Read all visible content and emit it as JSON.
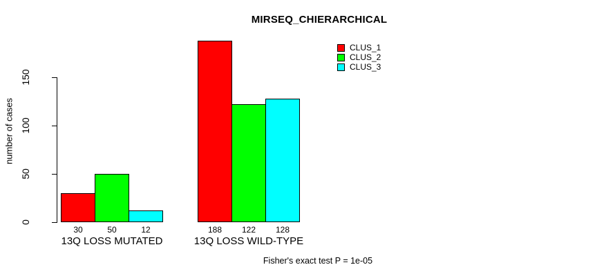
{
  "chart_data": {
    "type": "bar",
    "title": "MIRSEQ_CHIERARCHICAL",
    "xlabel": "",
    "ylabel": "number of cases",
    "categories": [
      "13Q LOSS MUTATED",
      "13Q LOSS WILD-TYPE"
    ],
    "series": [
      {
        "name": "CLUS_1",
        "color": "#FF0000",
        "values": [
          30,
          188
        ]
      },
      {
        "name": "CLUS_2",
        "color": "#00FF00",
        "values": [
          50,
          122
        ]
      },
      {
        "name": "CLUS_3",
        "color": "#00FFFF",
        "values": [
          12,
          128
        ]
      }
    ],
    "bar_value_labels": [
      [
        "30",
        "50",
        "12"
      ],
      [
        "188",
        "122",
        "128"
      ]
    ],
    "yticks": [
      "0",
      "50",
      "100",
      "150"
    ],
    "ylim": [
      0,
      195
    ],
    "grid": false,
    "legend_position": "topright",
    "annotation": "Fisher's exact test P = 1e-05",
    "colors": {
      "bar_border": "#000000",
      "axis": "#000000",
      "text": "#000000",
      "background": "#FFFFFF"
    }
  }
}
